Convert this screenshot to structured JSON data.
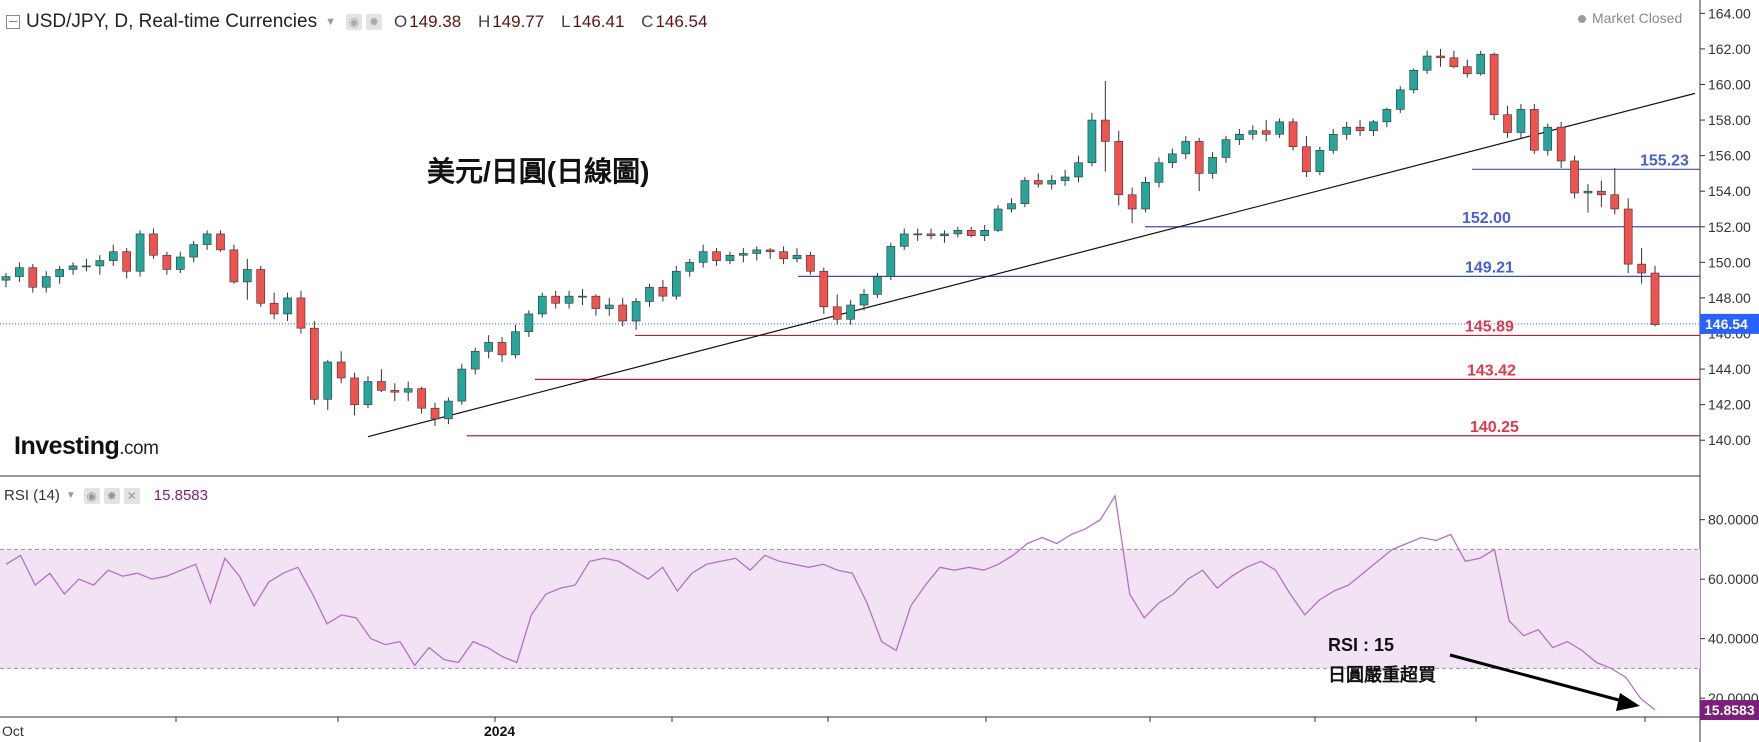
{
  "header": {
    "symbol": "USD/JPY, D, Real-time Currencies",
    "open_label": "O",
    "open": "149.38",
    "high_label": "H",
    "high": "149.77",
    "low_label": "L",
    "low": "146.41",
    "close_label": "C",
    "close": "146.54"
  },
  "market_status": "Market Closed",
  "logo": {
    "main": "Investing",
    "suffix": ".com"
  },
  "chart_title": "美元/日圓(日線圖)",
  "rsi_header": {
    "label": "RSI (14)",
    "value": "15.8583"
  },
  "rsi_note": {
    "line1": "RSI : 15",
    "line2": "日圓嚴重超買"
  },
  "icons": [
    "collapse-icon",
    "eye-icon",
    "gear-icon",
    "close-icon",
    "chevron-down-icon",
    "arrow-icon"
  ],
  "colors": {
    "up": "#26a69a",
    "down": "#ef5350",
    "rsi": "#b571c5",
    "rsi_band": "#f1e3f4",
    "support": "#b3263a",
    "resistance": "#3f4fb0",
    "price_tag": "#2962ff",
    "rsi_tag": "#7b1f7b"
  },
  "chart_data": [
    {
      "type": "candlestick",
      "title": "USD/JPY, D, Real-time Currencies",
      "y_ticks": [
        "140.00",
        "142.00",
        "144.00",
        "146.00",
        "148.00",
        "150.00",
        "152.00",
        "154.00",
        "156.00",
        "158.00",
        "160.00",
        "162.00",
        "164.00"
      ],
      "ylim": [
        139,
        164.3
      ],
      "x_labels": [
        "Oct",
        "2024"
      ],
      "last_price": "146.54",
      "support_lines": [
        {
          "label": "145.89",
          "value": 145.89
        },
        {
          "label": "143.42",
          "value": 143.42
        },
        {
          "label": "140.25",
          "value": 140.25
        }
      ],
      "resistance_lines": [
        {
          "label": "155.23",
          "value": 155.23
        },
        {
          "label": "152.00",
          "value": 152.0
        },
        {
          "label": "149.21",
          "value": 149.21
        }
      ],
      "trendline": {
        "from_index": 27,
        "from_value": 140.2,
        "to_index": 99,
        "to_value": 159.5
      },
      "candles": [
        [
          149.0,
          149.4,
          148.6,
          149.2
        ],
        [
          149.2,
          150.0,
          148.9,
          149.7
        ],
        [
          149.7,
          149.9,
          148.3,
          148.6
        ],
        [
          148.6,
          149.5,
          148.3,
          149.2
        ],
        [
          149.2,
          149.8,
          148.8,
          149.6
        ],
        [
          149.6,
          150.0,
          149.3,
          149.8
        ],
        [
          149.8,
          150.2,
          149.5,
          149.8
        ],
        [
          149.8,
          150.4,
          149.3,
          150.1
        ],
        [
          150.1,
          151.0,
          149.8,
          150.6
        ],
        [
          150.6,
          150.8,
          149.1,
          149.5
        ],
        [
          149.5,
          151.8,
          149.2,
          151.6
        ],
        [
          151.6,
          151.9,
          150.2,
          150.4
        ],
        [
          150.4,
          150.6,
          149.3,
          149.6
        ],
        [
          149.6,
          150.6,
          149.4,
          150.3
        ],
        [
          150.3,
          151.2,
          150.0,
          151.0
        ],
        [
          151.0,
          151.8,
          150.7,
          151.6
        ],
        [
          151.6,
          151.8,
          150.6,
          150.7
        ],
        [
          150.7,
          151.0,
          148.8,
          148.9
        ],
        [
          148.9,
          150.2,
          147.9,
          149.6
        ],
        [
          149.6,
          149.8,
          147.5,
          147.7
        ],
        [
          147.7,
          148.3,
          146.8,
          147.1
        ],
        [
          147.1,
          148.3,
          146.7,
          148.0
        ],
        [
          148.0,
          148.4,
          146.0,
          146.3
        ],
        [
          146.3,
          146.7,
          142.0,
          142.3
        ],
        [
          142.3,
          144.5,
          141.7,
          144.4
        ],
        [
          144.4,
          145.0,
          143.2,
          143.5
        ],
        [
          143.5,
          143.8,
          141.4,
          142.0
        ],
        [
          142.0,
          143.6,
          141.8,
          143.3
        ],
        [
          143.3,
          144.0,
          142.7,
          142.8
        ],
        [
          142.8,
          143.2,
          142.2,
          142.7
        ],
        [
          142.7,
          143.3,
          142.2,
          142.9
        ],
        [
          142.9,
          143.0,
          141.5,
          141.8
        ],
        [
          141.8,
          142.1,
          140.8,
          141.2
        ],
        [
          141.2,
          142.4,
          140.9,
          142.2
        ],
        [
          142.2,
          144.3,
          142.0,
          144.0
        ],
        [
          144.0,
          145.2,
          143.7,
          145.0
        ],
        [
          145.0,
          145.9,
          144.6,
          145.5
        ],
        [
          145.5,
          145.8,
          144.4,
          144.8
        ],
        [
          144.8,
          146.5,
          144.6,
          146.1
        ],
        [
          146.1,
          147.3,
          145.8,
          147.1
        ],
        [
          147.1,
          148.3,
          146.9,
          148.1
        ],
        [
          148.1,
          148.4,
          147.4,
          147.7
        ],
        [
          147.7,
          148.4,
          147.4,
          148.1
        ],
        [
          148.1,
          148.5,
          147.6,
          148.1
        ],
        [
          148.1,
          148.2,
          147.0,
          147.4
        ],
        [
          147.4,
          148.0,
          147.0,
          147.6
        ],
        [
          147.6,
          148.0,
          146.4,
          146.7
        ],
        [
          146.7,
          148.0,
          146.2,
          147.8
        ],
        [
          147.8,
          148.8,
          147.5,
          148.6
        ],
        [
          148.6,
          149.0,
          147.8,
          148.1
        ],
        [
          148.1,
          149.8,
          147.9,
          149.5
        ],
        [
          149.5,
          150.2,
          149.2,
          150.0
        ],
        [
          150.0,
          151.0,
          149.7,
          150.6
        ],
        [
          150.6,
          150.8,
          149.8,
          150.1
        ],
        [
          150.1,
          150.6,
          149.9,
          150.4
        ],
        [
          150.4,
          150.8,
          150.0,
          150.5
        ],
        [
          150.5,
          150.9,
          150.1,
          150.7
        ],
        [
          150.7,
          150.8,
          150.2,
          150.6
        ],
        [
          150.6,
          150.9,
          149.9,
          150.2
        ],
        [
          150.2,
          150.8,
          150.0,
          150.4
        ],
        [
          150.4,
          150.6,
          149.3,
          149.5
        ],
        [
          149.5,
          149.7,
          147.1,
          147.5
        ],
        [
          147.5,
          148.2,
          146.5,
          146.8
        ],
        [
          146.8,
          147.9,
          146.5,
          147.6
        ],
        [
          147.6,
          148.5,
          147.3,
          148.2
        ],
        [
          148.2,
          149.4,
          148.0,
          149.2
        ],
        [
          149.2,
          151.1,
          149.0,
          150.9
        ],
        [
          150.9,
          151.9,
          150.7,
          151.6
        ],
        [
          151.6,
          151.9,
          151.2,
          151.6
        ],
        [
          151.6,
          151.9,
          151.3,
          151.5
        ],
        [
          151.5,
          151.8,
          151.1,
          151.6
        ],
        [
          151.6,
          152.0,
          151.4,
          151.8
        ],
        [
          151.8,
          152.0,
          151.4,
          151.5
        ],
        [
          151.5,
          152.1,
          151.2,
          151.8
        ],
        [
          151.8,
          153.2,
          151.7,
          153.0
        ],
        [
          153.0,
          153.6,
          152.8,
          153.3
        ],
        [
          153.3,
          154.8,
          153.1,
          154.6
        ],
        [
          154.6,
          155.0,
          154.2,
          154.4
        ],
        [
          154.4,
          154.9,
          154.1,
          154.6
        ],
        [
          154.6,
          155.2,
          154.3,
          154.8
        ],
        [
          154.8,
          156.0,
          154.5,
          155.6
        ],
        [
          155.6,
          158.4,
          155.4,
          158.0
        ],
        [
          158.0,
          160.2,
          155.1,
          156.8
        ],
        [
          156.8,
          157.4,
          153.2,
          153.8
        ],
        [
          153.8,
          154.2,
          152.2,
          153.0
        ],
        [
          153.0,
          154.8,
          152.8,
          154.5
        ],
        [
          154.5,
          155.9,
          154.2,
          155.6
        ],
        [
          155.6,
          156.4,
          155.3,
          156.1
        ],
        [
          156.1,
          157.1,
          155.8,
          156.8
        ],
        [
          156.8,
          157.0,
          154.0,
          155.0
        ],
        [
          155.0,
          156.2,
          154.7,
          155.9
        ],
        [
          155.9,
          157.1,
          155.6,
          156.9
        ],
        [
          156.9,
          157.5,
          156.6,
          157.2
        ],
        [
          157.2,
          157.7,
          156.9,
          157.4
        ],
        [
          157.4,
          158.0,
          156.8,
          157.2
        ],
        [
          157.2,
          158.1,
          157.0,
          157.9
        ],
        [
          157.9,
          158.1,
          156.3,
          156.5
        ],
        [
          156.5,
          157.1,
          154.8,
          155.1
        ],
        [
          155.1,
          156.5,
          154.9,
          156.3
        ],
        [
          156.3,
          157.5,
          156.1,
          157.2
        ],
        [
          157.2,
          157.9,
          156.9,
          157.6
        ],
        [
          157.6,
          158.0,
          157.1,
          157.4
        ],
        [
          157.4,
          158.0,
          157.1,
          157.9
        ],
        [
          157.9,
          158.7,
          157.6,
          158.6
        ],
        [
          158.6,
          159.9,
          158.4,
          159.7
        ],
        [
          159.7,
          160.9,
          159.5,
          160.8
        ],
        [
          160.8,
          161.9,
          160.6,
          161.6
        ],
        [
          161.6,
          162.0,
          161.0,
          161.5
        ],
        [
          161.5,
          161.9,
          160.9,
          161.0
        ],
        [
          161.0,
          161.4,
          160.4,
          160.6
        ],
        [
          160.6,
          161.9,
          160.5,
          161.7
        ],
        [
          161.7,
          161.8,
          158.0,
          158.3
        ],
        [
          158.3,
          158.8,
          157.0,
          157.3
        ],
        [
          157.3,
          158.9,
          157.0,
          158.6
        ],
        [
          158.6,
          158.9,
          156.1,
          156.3
        ],
        [
          156.3,
          157.8,
          156.0,
          157.6
        ],
        [
          157.6,
          157.9,
          155.3,
          155.7
        ],
        [
          155.7,
          156.0,
          153.6,
          153.9
        ],
        [
          153.9,
          154.4,
          152.8,
          154.0
        ],
        [
          154.0,
          154.6,
          153.1,
          153.8
        ],
        [
          153.8,
          155.3,
          152.7,
          153.0
        ],
        [
          153.0,
          153.6,
          149.4,
          149.9
        ],
        [
          149.9,
          150.8,
          148.8,
          149.4
        ],
        [
          149.4,
          149.8,
          146.4,
          146.5
        ]
      ]
    },
    {
      "type": "line",
      "title": "RSI (14)",
      "y_ticks": [
        "20.0000",
        "40.0000",
        "60.0000",
        "80.0000"
      ],
      "ylim": [
        14,
        94
      ],
      "overbought": 70,
      "oversold": 30,
      "last_value": "15.8583",
      "series": [
        {
          "values": [
            65,
            68,
            58,
            62,
            55,
            60,
            58,
            63,
            61,
            62,
            60,
            61,
            63,
            65,
            52,
            67,
            61,
            51,
            59,
            62,
            64,
            55,
            45,
            48,
            47,
            40,
            38,
            39,
            31,
            37,
            33,
            32,
            39,
            37,
            34,
            32,
            48,
            55,
            57,
            58,
            66,
            67,
            66,
            63,
            60,
            64,
            56,
            62,
            65,
            66,
            67,
            63,
            68,
            66,
            65,
            64,
            65,
            63,
            62,
            52,
            39,
            36,
            51,
            58,
            64,
            63,
            64,
            63,
            65,
            68,
            72,
            74,
            72,
            75,
            77,
            80,
            88,
            55,
            47,
            52,
            55,
            60,
            63,
            57,
            61,
            64,
            66,
            63,
            55,
            48,
            53,
            56,
            58,
            62,
            66,
            70,
            72,
            74,
            73,
            75,
            66,
            67,
            70,
            46,
            41,
            43,
            37,
            39,
            36,
            32,
            30,
            27,
            20,
            16
          ]
        }
      ]
    }
  ]
}
